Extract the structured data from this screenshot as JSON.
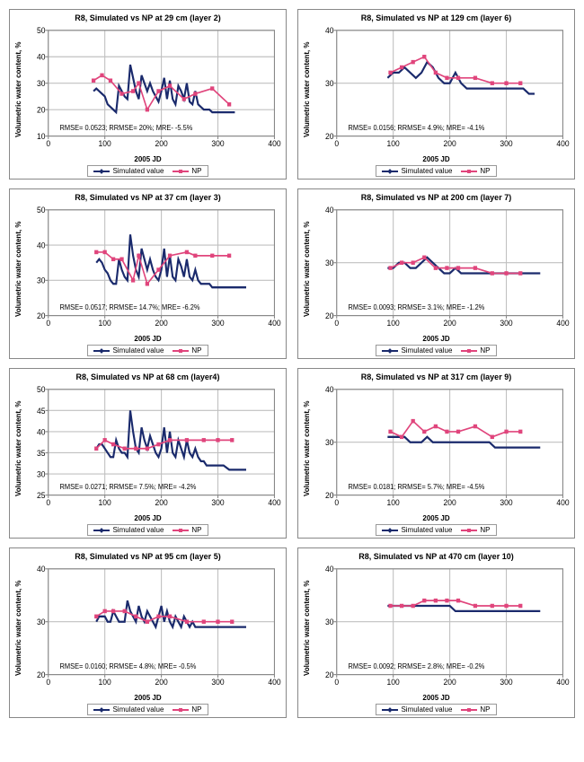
{
  "common": {
    "ylabel": "Volumetric water content, %",
    "xlabel": "2005 JD",
    "legend_sim": "Simulated value",
    "legend_np": "NP",
    "xlim": [
      0,
      400
    ],
    "xticks": [
      0,
      100,
      200,
      300,
      400
    ],
    "grid_color": "#c0c0c0",
    "axis_color": "#888888",
    "sim_color": "#1a2a6c",
    "np_color": "#e0457c",
    "background": "#ffffff",
    "title_fontsize": 9,
    "label_fontsize": 8
  },
  "panels": [
    {
      "title": "R8, Simulated vs NP at 29 cm (layer 2)",
      "ylim": [
        10,
        50
      ],
      "yticks": [
        10,
        20,
        30,
        40,
        50
      ],
      "stats": "RMSE= 0.0523; RRMSE= 20%; MRE- -5.5%",
      "sim": {
        "x": [
          80,
          85,
          90,
          95,
          100,
          105,
          110,
          115,
          120,
          125,
          130,
          135,
          140,
          145,
          150,
          155,
          160,
          165,
          170,
          175,
          180,
          185,
          190,
          195,
          200,
          205,
          210,
          215,
          220,
          225,
          230,
          235,
          240,
          245,
          250,
          255,
          260,
          265,
          270,
          275,
          280,
          285,
          290,
          295,
          300,
          310,
          320,
          330
        ],
        "y": [
          27,
          28,
          27,
          26,
          25,
          22,
          21,
          20,
          19,
          29,
          27,
          25,
          24,
          37,
          32,
          27,
          24,
          33,
          30,
          27,
          30,
          27,
          25,
          23,
          27,
          32,
          24,
          31,
          24,
          22,
          29,
          27,
          24,
          30,
          23,
          22,
          27,
          22,
          21,
          20,
          20,
          20,
          19,
          19,
          19,
          19,
          19,
          19
        ]
      },
      "np": {
        "x": [
          80,
          95,
          110,
          130,
          150,
          160,
          175,
          195,
          215,
          240,
          260,
          290,
          320
        ],
        "y": [
          31,
          33,
          31,
          26,
          27,
          30,
          20,
          27,
          29,
          24,
          26,
          28,
          22
        ]
      }
    },
    {
      "title": "R8, Simulated vs NP at 129 cm (layer 6)",
      "ylim": [
        20,
        40
      ],
      "yticks": [
        20,
        30,
        40
      ],
      "stats": "RMSE= 0.0156; RRMSE= 4.9%; MRE= -4.1%",
      "sim": {
        "x": [
          90,
          100,
          110,
          120,
          130,
          140,
          150,
          160,
          170,
          180,
          190,
          200,
          210,
          220,
          230,
          240,
          250,
          260,
          270,
          280,
          290,
          300,
          310,
          320,
          330,
          340,
          350
        ],
        "y": [
          31,
          32,
          32,
          33,
          32,
          31,
          32,
          34,
          33,
          31,
          30,
          30,
          32,
          30,
          29,
          29,
          29,
          29,
          29,
          29,
          29,
          29,
          29,
          29,
          29,
          28,
          28
        ]
      },
      "np": {
        "x": [
          95,
          115,
          135,
          155,
          175,
          195,
          215,
          245,
          275,
          300,
          325
        ],
        "y": [
          32,
          33,
          34,
          35,
          32,
          31,
          31,
          31,
          30,
          30,
          30
        ]
      }
    },
    {
      "title": "R8, Simulated vs NP at 37 cm (layer 3)",
      "ylim": [
        20,
        50
      ],
      "yticks": [
        20,
        30,
        40,
        50
      ],
      "stats": "RMSE= 0.0517; RRMSE= 14.7%; MRE= -6.2%",
      "sim": {
        "x": [
          85,
          90,
          95,
          100,
          105,
          110,
          115,
          120,
          125,
          130,
          135,
          140,
          145,
          150,
          155,
          160,
          165,
          170,
          175,
          180,
          185,
          190,
          195,
          200,
          205,
          210,
          215,
          220,
          225,
          230,
          235,
          240,
          245,
          250,
          255,
          260,
          265,
          270,
          275,
          280,
          285,
          290,
          295,
          300,
          310,
          320,
          330,
          350
        ],
        "y": [
          35,
          36,
          35,
          33,
          32,
          30,
          29,
          29,
          36,
          33,
          31,
          30,
          43,
          37,
          33,
          31,
          39,
          36,
          33,
          36,
          33,
          31,
          30,
          33,
          39,
          31,
          37,
          31,
          30,
          36,
          34,
          31,
          36,
          31,
          30,
          33,
          30,
          29,
          29,
          29,
          29,
          28,
          28,
          28,
          28,
          28,
          28,
          28
        ]
      },
      "np": {
        "x": [
          85,
          100,
          115,
          130,
          150,
          160,
          175,
          195,
          215,
          245,
          260,
          290,
          320
        ],
        "y": [
          38,
          38,
          36,
          36,
          30,
          37,
          29,
          33,
          37,
          38,
          37,
          37,
          37
        ]
      }
    },
    {
      "title": "R8, Simulated vs NP at 200 cm (layer 7)",
      "ylim": [
        20,
        40
      ],
      "yticks": [
        20,
        30,
        40
      ],
      "stats": "RMSE= 0.0093; RRMSE= 3.1%; MRE= -1.2%",
      "sim": {
        "x": [
          90,
          100,
          110,
          120,
          130,
          140,
          150,
          160,
          170,
          180,
          190,
          200,
          210,
          220,
          230,
          240,
          250,
          260,
          270,
          280,
          290,
          300,
          310,
          320,
          330,
          340,
          350,
          360
        ],
        "y": [
          29,
          29,
          30,
          30,
          29,
          29,
          30,
          31,
          30,
          29,
          28,
          28,
          29,
          28,
          28,
          28,
          28,
          28,
          28,
          28,
          28,
          28,
          28,
          28,
          28,
          28,
          28,
          28
        ]
      },
      "np": {
        "x": [
          95,
          115,
          135,
          155,
          175,
          195,
          215,
          245,
          275,
          300,
          325
        ],
        "y": [
          29,
          30,
          30,
          31,
          29,
          29,
          29,
          29,
          28,
          28,
          28
        ]
      }
    },
    {
      "title": "R8, Simulated vs NP at 68 cm (layer4)",
      "ylim": [
        25,
        50
      ],
      "yticks": [
        25,
        30,
        35,
        40,
        45,
        50
      ],
      "stats": "RMSE= 0.0271; RRMSE= 7.5%; MRE= -4.2%",
      "sim": {
        "x": [
          85,
          90,
          95,
          100,
          105,
          110,
          115,
          120,
          125,
          130,
          135,
          140,
          145,
          150,
          155,
          160,
          165,
          170,
          175,
          180,
          185,
          190,
          195,
          200,
          205,
          210,
          215,
          220,
          225,
          230,
          235,
          240,
          245,
          250,
          255,
          260,
          265,
          270,
          275,
          280,
          285,
          290,
          295,
          300,
          310,
          320,
          330,
          350
        ],
        "y": [
          36,
          37,
          37,
          36,
          35,
          34,
          34,
          38,
          36,
          35,
          35,
          34,
          45,
          40,
          36,
          35,
          41,
          38,
          36,
          39,
          37,
          35,
          34,
          36,
          41,
          35,
          40,
          35,
          34,
          38,
          36,
          34,
          38,
          35,
          34,
          36,
          34,
          33,
          33,
          32,
          32,
          32,
          32,
          32,
          32,
          31,
          31,
          31
        ]
      },
      "np": {
        "x": [
          85,
          100,
          115,
          135,
          155,
          175,
          195,
          215,
          245,
          275,
          300,
          325
        ],
        "y": [
          36,
          38,
          37,
          36,
          36,
          36,
          37,
          38,
          38,
          38,
          38,
          38
        ]
      }
    },
    {
      "title": "R8, Simulated vs NP at 317 cm (layer 9)",
      "ylim": [
        20,
        40
      ],
      "yticks": [
        20,
        30,
        40
      ],
      "stats": "RMSE= 0.0181; RRMSE= 5.7%; MRE= -4.5%",
      "sim": {
        "x": [
          90,
          100,
          110,
          120,
          130,
          140,
          150,
          160,
          170,
          180,
          190,
          200,
          210,
          220,
          230,
          240,
          250,
          260,
          270,
          280,
          290,
          300,
          310,
          320,
          330,
          340,
          350,
          360
        ],
        "y": [
          31,
          31,
          31,
          31,
          30,
          30,
          30,
          31,
          30,
          30,
          30,
          30,
          30,
          30,
          30,
          30,
          30,
          30,
          30,
          29,
          29,
          29,
          29,
          29,
          29,
          29,
          29,
          29
        ]
      },
      "np": {
        "x": [
          95,
          115,
          135,
          155,
          175,
          195,
          215,
          245,
          275,
          300,
          325
        ],
        "y": [
          32,
          31,
          34,
          32,
          33,
          32,
          32,
          33,
          31,
          32,
          32
        ]
      }
    },
    {
      "title": "R8, Simulated vs NP at 95 cm (layer 5)",
      "ylim": [
        20,
        40
      ],
      "yticks": [
        20,
        30,
        40
      ],
      "stats": "RMSE= 0.0160; RRMSE= 4.8%; MRE= -0.5%",
      "sim": {
        "x": [
          85,
          90,
          95,
          100,
          105,
          110,
          115,
          120,
          125,
          130,
          135,
          140,
          145,
          150,
          155,
          160,
          165,
          170,
          175,
          180,
          185,
          190,
          195,
          200,
          205,
          210,
          215,
          220,
          225,
          230,
          235,
          240,
          245,
          250,
          255,
          260,
          265,
          270,
          275,
          280,
          285,
          290,
          295,
          300,
          310,
          320,
          330,
          350
        ],
        "y": [
          30,
          31,
          31,
          31,
          30,
          30,
          32,
          31,
          30,
          30,
          30,
          34,
          32,
          31,
          30,
          33,
          31,
          30,
          32,
          31,
          30,
          29,
          31,
          33,
          30,
          32,
          30,
          29,
          31,
          30,
          29,
          31,
          30,
          29,
          30,
          29,
          29,
          29,
          29,
          29,
          29,
          29,
          29,
          29,
          29,
          29,
          29,
          29
        ]
      },
      "np": {
        "x": [
          85,
          100,
          115,
          135,
          155,
          175,
          195,
          215,
          245,
          275,
          300,
          325
        ],
        "y": [
          31,
          32,
          32,
          32,
          31,
          30,
          31,
          31,
          30,
          30,
          30,
          30
        ]
      }
    },
    {
      "title": "R8, Simulated vs NP at 470 cm (layer 10)",
      "ylim": [
        20,
        40
      ],
      "yticks": [
        20,
        30,
        40
      ],
      "stats": "RMSE= 0.0092; RRMSE= 2.8%; MRE= -0.2%",
      "sim": {
        "x": [
          90,
          100,
          110,
          120,
          130,
          140,
          150,
          160,
          170,
          180,
          190,
          200,
          210,
          220,
          230,
          240,
          250,
          260,
          270,
          280,
          290,
          300,
          310,
          320,
          330,
          340,
          350,
          360
        ],
        "y": [
          33,
          33,
          33,
          33,
          33,
          33,
          33,
          33,
          33,
          33,
          33,
          33,
          32,
          32,
          32,
          32,
          32,
          32,
          32,
          32,
          32,
          32,
          32,
          32,
          32,
          32,
          32,
          32
        ]
      },
      "np": {
        "x": [
          95,
          115,
          135,
          155,
          175,
          195,
          215,
          245,
          275,
          300,
          325
        ],
        "y": [
          33,
          33,
          33,
          34,
          34,
          34,
          34,
          33,
          33,
          33,
          33
        ]
      }
    }
  ]
}
